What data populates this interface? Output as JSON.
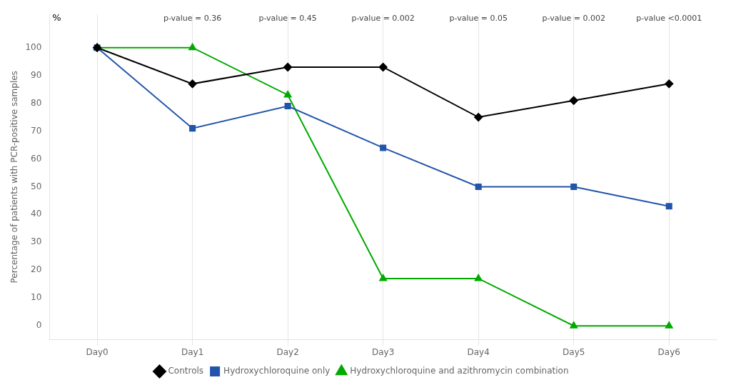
{
  "chart_data": {
    "type": "line",
    "categories": [
      "Day0",
      "Day1",
      "Day2",
      "Day3",
      "Day4",
      "Day5",
      "Day6"
    ],
    "series": [
      {
        "name": "Controls",
        "color": "#000000",
        "marker": "diamond",
        "values": [
          100,
          87,
          93,
          93,
          75,
          81,
          87
        ]
      },
      {
        "name": "Hydroxychloroquine only",
        "color": "#2255aa",
        "marker": "square",
        "values": [
          100,
          71,
          79,
          64,
          50,
          50,
          43
        ]
      },
      {
        "name": "Hydroxychloroquine and azithromycin combination",
        "color": "#00aa00",
        "marker": "triangle",
        "values": [
          100,
          100,
          83,
          17,
          17,
          0,
          0
        ]
      }
    ],
    "y_label": "Percentage of patients with PCR-positive samples",
    "ylim": [
      -5,
      112
    ],
    "yticks": [
      0,
      10,
      20,
      30,
      40,
      50,
      60,
      70,
      80,
      90,
      100
    ],
    "grid": "x",
    "legend": "bottom",
    "annotations": [
      {
        "x": "Day1",
        "y": 109,
        "text": "p-value = 0.36"
      },
      {
        "x": "Day2",
        "y": 109,
        "text": "p-value = 0.45"
      },
      {
        "x": "Day3",
        "y": 109,
        "text": "p-value = 0.002"
      },
      {
        "x": "Day4",
        "y": 109,
        "text": "p-value = 0.05"
      },
      {
        "x": "Day5",
        "y": 109,
        "text": "p-value = 0.002"
      },
      {
        "x": "Day6",
        "y": 109,
        "text": "p-value <0.0001"
      },
      {
        "y": 109,
        "text": "%"
      }
    ]
  }
}
